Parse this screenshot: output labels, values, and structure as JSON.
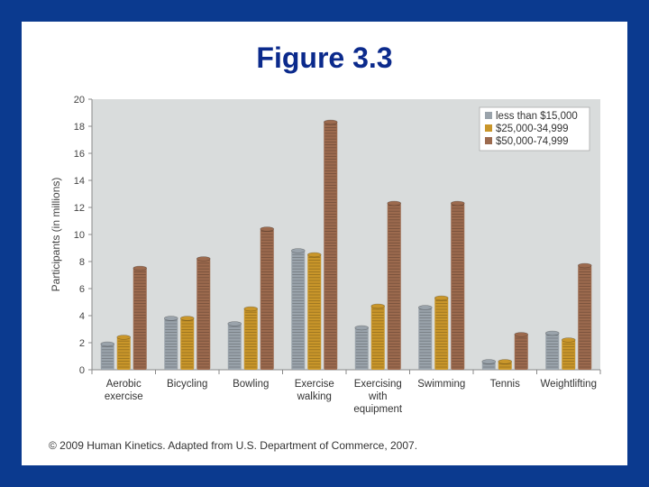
{
  "slide": {
    "title": "Figure 3.3",
    "credit": "© 2009 Human Kinetics. Adapted from U.S. Department of Commerce, 2007."
  },
  "colors": {
    "background": "#0b3a8f",
    "title": "#0b2a8c",
    "plot_area": "#d9dcdc",
    "series": [
      "#9aa3ab",
      "#c9962a",
      "#9c6a4e"
    ]
  },
  "chart_data": {
    "type": "bar",
    "title": "",
    "xlabel": "",
    "ylabel": "Participants (in millions)",
    "ylim": [
      0,
      20
    ],
    "yticks": [
      0,
      2,
      4,
      6,
      8,
      10,
      12,
      14,
      16,
      18,
      20
    ],
    "grid": false,
    "legend_position": "top-right",
    "categories": [
      [
        "Aerobic",
        "exercise"
      ],
      [
        "Bicycling"
      ],
      [
        "Bowling"
      ],
      [
        "Exercise",
        "walking"
      ],
      [
        "Exercising",
        "with",
        "equipment"
      ],
      [
        "Swimming"
      ],
      [
        "Tennis"
      ],
      [
        "Weightlifting"
      ]
    ],
    "series": [
      {
        "name": "less than $15,000",
        "color": "#9aa3ab",
        "values": [
          1.9,
          3.8,
          3.4,
          8.8,
          3.1,
          4.6,
          0.6,
          2.7
        ]
      },
      {
        "name": "$25,000-34,999",
        "color": "#c9962a",
        "values": [
          2.4,
          3.8,
          4.5,
          8.5,
          4.7,
          5.3,
          0.6,
          2.2
        ]
      },
      {
        "name": "$50,000-74,999",
        "color": "#9c6a4e",
        "values": [
          7.5,
          8.2,
          10.4,
          18.3,
          12.3,
          null,
          2.6,
          7.7
        ]
      }
    ],
    "series_note_swimming_third": 12.3
  }
}
